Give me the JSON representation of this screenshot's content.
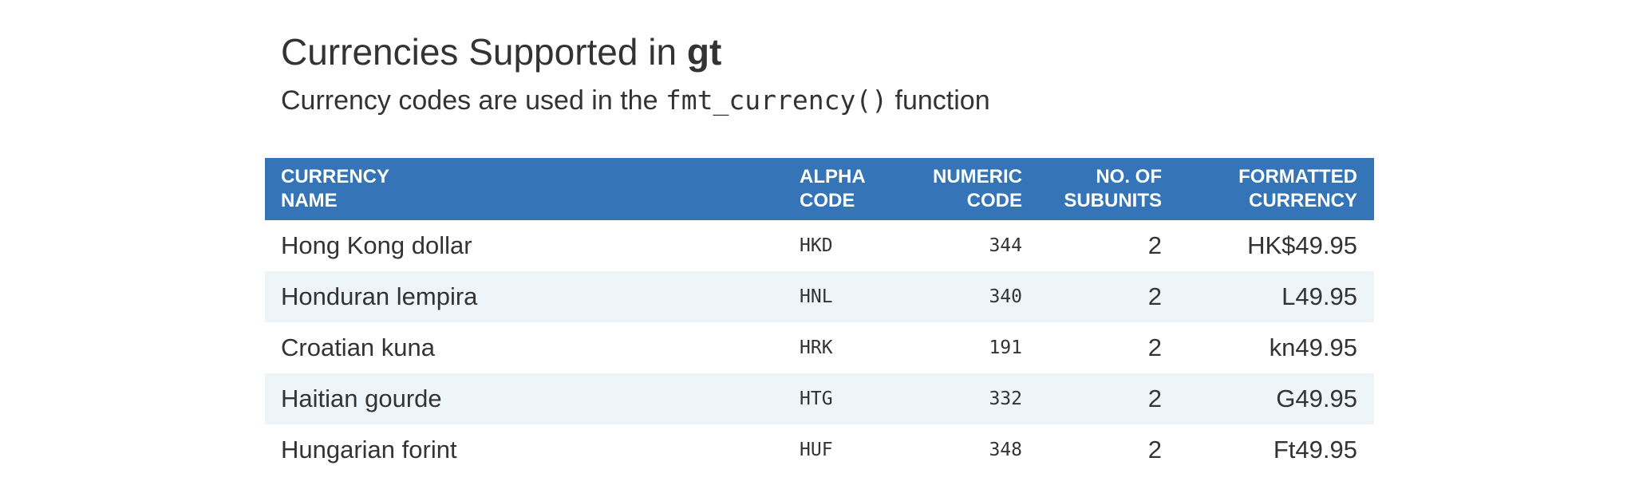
{
  "header": {
    "title": {
      "text": "Currencies Supported in ",
      "emphasis": "gt"
    },
    "subtitle": {
      "before": "Currency codes are used in the ",
      "code": "fmt_currency()",
      "after": " function"
    }
  },
  "table": {
    "columns": [
      [
        "CURRENCY",
        "NAME"
      ],
      [
        "ALPHA",
        "CODE"
      ],
      [
        "NUMERIC",
        "CODE"
      ],
      [
        "NO. OF",
        "SUBUNITS"
      ],
      [
        "FORMATTED",
        "CURRENCY"
      ]
    ],
    "rows": [
      [
        "Hong Kong dollar",
        "HKD",
        344,
        2,
        "HK$49.95"
      ],
      [
        "Honduran lempira",
        "HNL",
        340,
        2,
        "L49.95"
      ],
      [
        "Croatian kuna",
        "HRK",
        191,
        2,
        "kn49.95"
      ],
      [
        "Haitian gourde",
        "HTG",
        332,
        2,
        "G49.95"
      ],
      [
        "Hungarian forint",
        "HUF",
        348,
        2,
        "Ft49.95"
      ]
    ]
  }
}
